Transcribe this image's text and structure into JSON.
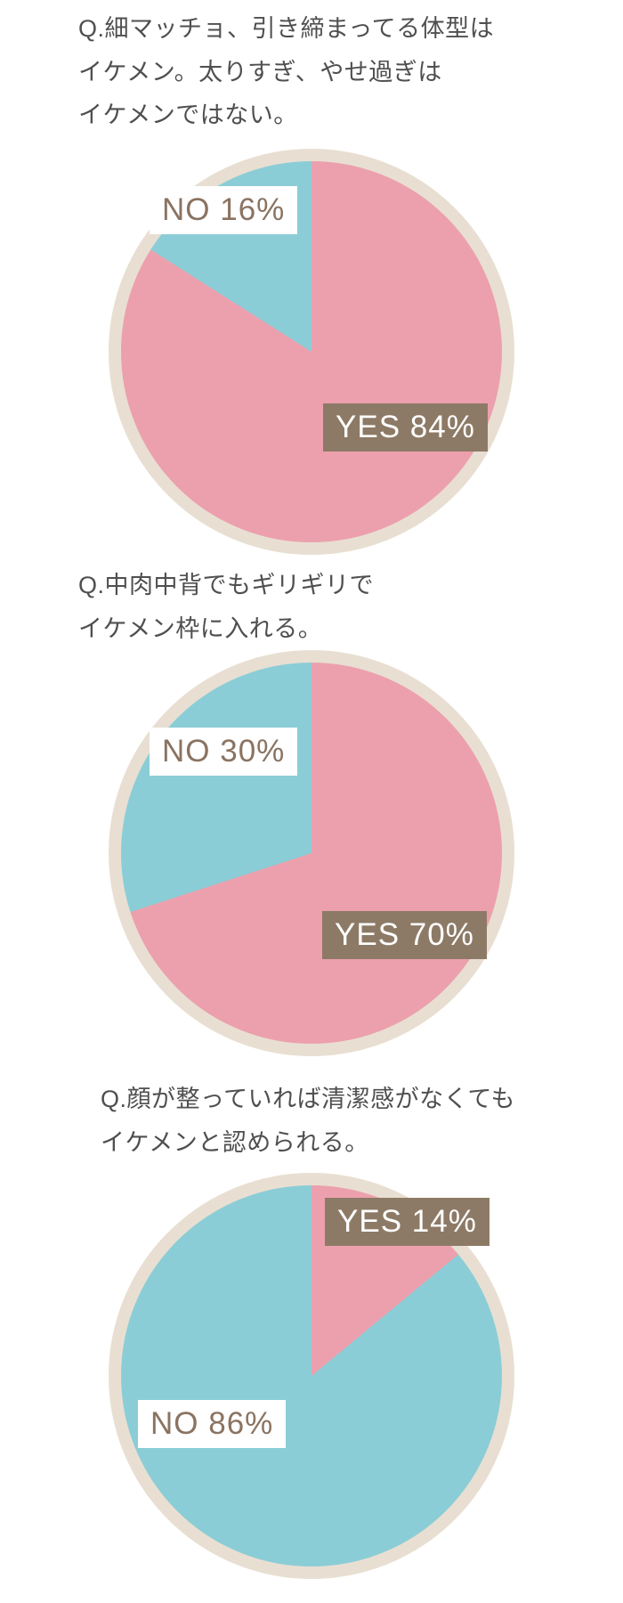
{
  "palette": {
    "yes_pink": "#eca0ad",
    "no_blue": "#8bcdd6",
    "ring_cream": "#e8dfd2",
    "label_brown_bg": "#8d7a66",
    "label_brown_text": "#8a7361",
    "label_yes_text": "#ffffff",
    "question_text": "#4f4f4f",
    "background": "#ffffff"
  },
  "chart_data": [
    {
      "type": "pie",
      "title": "Q.細マッチョ、引き締まってる体型は\nイケメン。太りすぎ、やせ過ぎは\nイケメンではない。",
      "slices": [
        {
          "label": "YES",
          "value": 84,
          "display": "YES 84%"
        },
        {
          "label": "NO",
          "value": 16,
          "display": "NO 16%"
        }
      ],
      "start_angle_deg": 0,
      "direction": "clockwise",
      "legend": "none"
    },
    {
      "type": "pie",
      "title": "Q.中肉中背でもギリギリで\nイケメン枠に入れる。",
      "slices": [
        {
          "label": "YES",
          "value": 70,
          "display": "YES 70%"
        },
        {
          "label": "NO",
          "value": 30,
          "display": "NO 30%"
        }
      ],
      "start_angle_deg": 0,
      "direction": "clockwise",
      "legend": "none"
    },
    {
      "type": "pie",
      "title": "Q.顔が整っていれば清潔感がなくても\nイケメンと認められる。",
      "slices": [
        {
          "label": "YES",
          "value": 14,
          "display": "YES 14%"
        },
        {
          "label": "NO",
          "value": 86,
          "display": "NO 86%"
        }
      ],
      "start_angle_deg": 0,
      "direction": "clockwise",
      "legend": "none"
    }
  ]
}
